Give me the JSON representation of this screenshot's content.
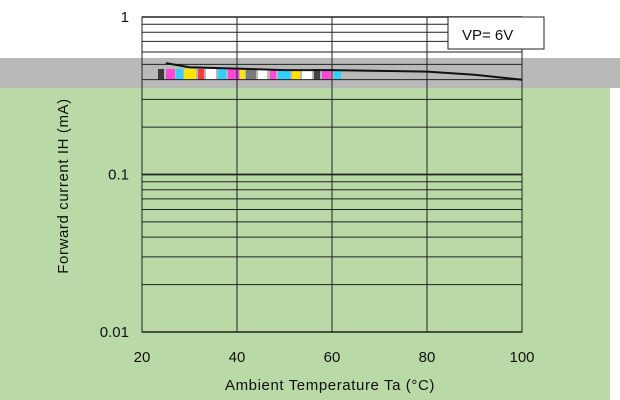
{
  "chart_data": {
    "type": "line",
    "title": "",
    "xlabel": "Ambient Temperature Ta (°C)",
    "ylabel": "Forward current IH (mA)",
    "x_ticks": [
      "20",
      "40",
      "60",
      "80",
      "100"
    ],
    "y_ticks": [
      "0.01",
      "0.1",
      "1"
    ],
    "xlim": [
      20,
      100
    ],
    "ylim": [
      0.01,
      1
    ],
    "y_scale": "log",
    "grid": true,
    "legend": {
      "placement": "top-right",
      "entries": [
        "VP= 6V"
      ]
    },
    "series": [
      {
        "name": "VP= 6V",
        "x": [
          25,
          30,
          40,
          50,
          60,
          70,
          80,
          90,
          100
        ],
        "y": [
          0.51,
          0.48,
          0.47,
          0.46,
          0.46,
          0.455,
          0.45,
          0.43,
          0.4
        ]
      }
    ]
  },
  "colors": {
    "plot_background": "#b9d9a7",
    "band": "#b9b9b9",
    "line": "#111111"
  }
}
